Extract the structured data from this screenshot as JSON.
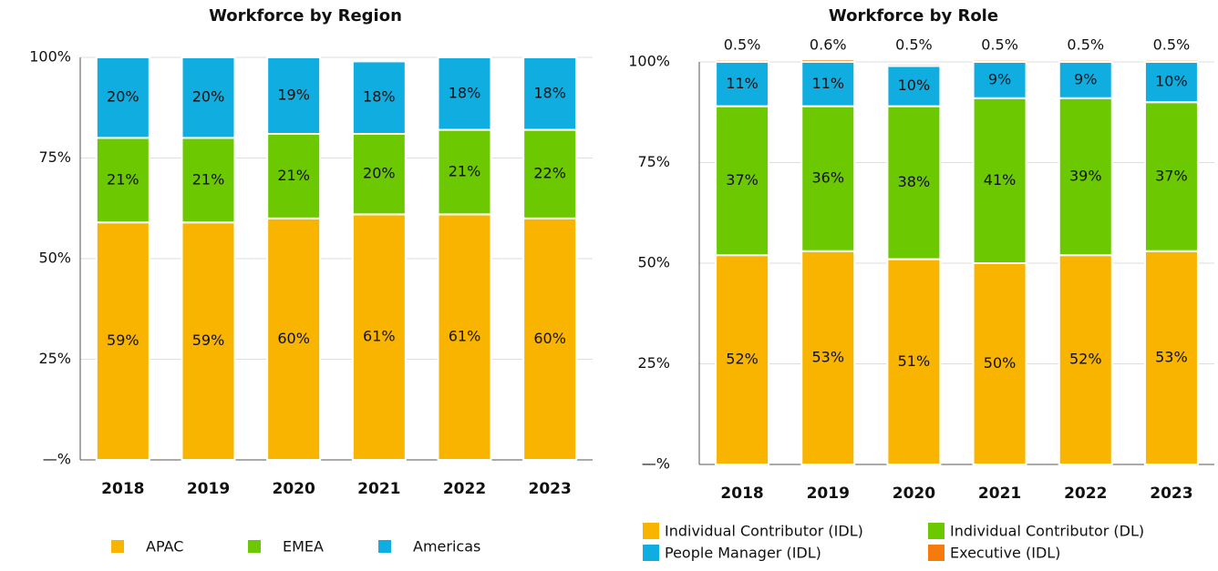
{
  "chart_data": [
    {
      "type": "stacked_bar",
      "title": "Workforce by Region",
      "categories": [
        "2018",
        "2019",
        "2020",
        "2021",
        "2022",
        "2023"
      ],
      "series": [
        {
          "name": "APAC",
          "color": "#f9b400",
          "values": [
            59,
            59,
            60,
            61,
            61,
            60
          ],
          "value_labels": [
            "59%",
            "59%",
            "60%",
            "61%",
            "61%",
            "60%"
          ]
        },
        {
          "name": "EMEA",
          "color": "#6cc800",
          "values": [
            21,
            21,
            21,
            20,
            21,
            22
          ],
          "value_labels": [
            "21%",
            "21%",
            "21%",
            "20%",
            "21%",
            "22%"
          ]
        },
        {
          "name": "Americas",
          "color": "#10ade0",
          "values": [
            20,
            20,
            19,
            18,
            18,
            18
          ],
          "value_labels": [
            "20%",
            "20%",
            "19%",
            "18%",
            "18%",
            "18%"
          ]
        }
      ],
      "ylim": [
        0,
        100
      ],
      "yticks": [
        {
          "value": 0,
          "label": "—%"
        },
        {
          "value": 25,
          "label": "25%"
        },
        {
          "value": 50,
          "label": "50%"
        },
        {
          "value": 75,
          "label": "75%"
        },
        {
          "value": 100,
          "label": "100%"
        }
      ],
      "grid": true,
      "legend": "bottom"
    },
    {
      "type": "stacked_bar",
      "title": "Workforce by Role",
      "categories": [
        "2018",
        "2019",
        "2020",
        "2021",
        "2022",
        "2023"
      ],
      "series": [
        {
          "name": "Individual Contributor (IDL)",
          "color": "#f9b400",
          "values": [
            52,
            53,
            51,
            50,
            52,
            53
          ],
          "value_labels": [
            "52%",
            "53%",
            "51%",
            "50%",
            "52%",
            "53%"
          ]
        },
        {
          "name": "Individual Contributor (DL)",
          "color": "#6cc800",
          "values": [
            37,
            36,
            38,
            41,
            39,
            37
          ],
          "value_labels": [
            "37%",
            "36%",
            "38%",
            "41%",
            "39%",
            "37%"
          ]
        },
        {
          "name": "People Manager (IDL)",
          "color": "#10ade0",
          "values": [
            11,
            11,
            10,
            9,
            9,
            10
          ],
          "value_labels": [
            "11%",
            "11%",
            "10%",
            "9%",
            "9%",
            "10%"
          ]
        },
        {
          "name": "Executive (IDL)",
          "color": "#f77a0c",
          "values": [
            0.5,
            0.6,
            0.5,
            0.5,
            0.5,
            0.5
          ],
          "value_labels": [
            "0.5%",
            "0.6%",
            "0.5%",
            "0.5%",
            "0.5%",
            "0.5%"
          ]
        }
      ],
      "ylim": [
        0,
        100
      ],
      "yticks": [
        {
          "value": 0,
          "label": "—%"
        },
        {
          "value": 25,
          "label": "25%"
        },
        {
          "value": 50,
          "label": "50%"
        },
        {
          "value": 75,
          "label": "75%"
        },
        {
          "value": 100,
          "label": "100%"
        }
      ],
      "grid": true,
      "legend": "bottom"
    }
  ]
}
